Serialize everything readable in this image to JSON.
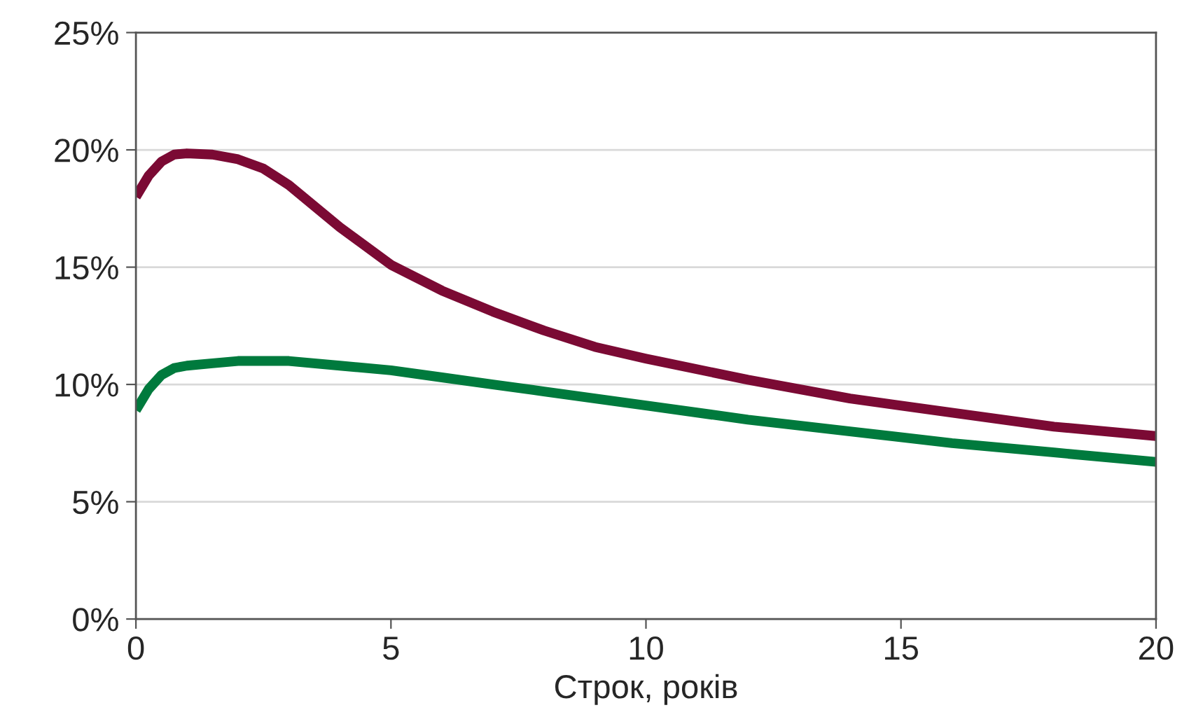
{
  "chart_data": {
    "type": "line",
    "xlabel": "Строк, років",
    "xlim": [
      0,
      20
    ],
    "xticks": [
      0,
      5,
      10,
      15,
      20
    ],
    "ylim": [
      0,
      25
    ],
    "yticks": [
      {
        "value": 0,
        "label": "0%"
      },
      {
        "value": 5,
        "label": "5%"
      },
      {
        "value": 10,
        "label": "10%"
      },
      {
        "value": 15,
        "label": "15%"
      },
      {
        "value": 20,
        "label": "20%"
      },
      {
        "value": 25,
        "label": "25%"
      }
    ],
    "grid": "y",
    "legend": false,
    "line_style": "solid",
    "marker": "none",
    "series": [
      {
        "color": "#7b0a34",
        "x": [
          0,
          0.25,
          0.5,
          0.75,
          1,
          1.5,
          2,
          2.5,
          3,
          4,
          5,
          6,
          7,
          8,
          9,
          10,
          12,
          14,
          16,
          18,
          20
        ],
        "values": [
          18.0,
          18.9,
          19.5,
          19.8,
          19.85,
          19.8,
          19.6,
          19.2,
          18.5,
          16.7,
          15.1,
          14.0,
          13.1,
          12.3,
          11.6,
          11.1,
          10.2,
          9.4,
          8.8,
          8.2,
          7.8
        ]
      },
      {
        "color": "#007a3d",
        "x": [
          0,
          0.25,
          0.5,
          0.75,
          1,
          1.5,
          2,
          2.5,
          3,
          4,
          5,
          6,
          7,
          8,
          9,
          10,
          12,
          14,
          16,
          18,
          20
        ],
        "values": [
          8.9,
          9.8,
          10.4,
          10.7,
          10.8,
          10.9,
          11.0,
          11.0,
          11.0,
          10.8,
          10.6,
          10.3,
          10.0,
          9.7,
          9.4,
          9.1,
          8.5,
          8.0,
          7.5,
          7.1,
          6.7
        ]
      }
    ]
  }
}
